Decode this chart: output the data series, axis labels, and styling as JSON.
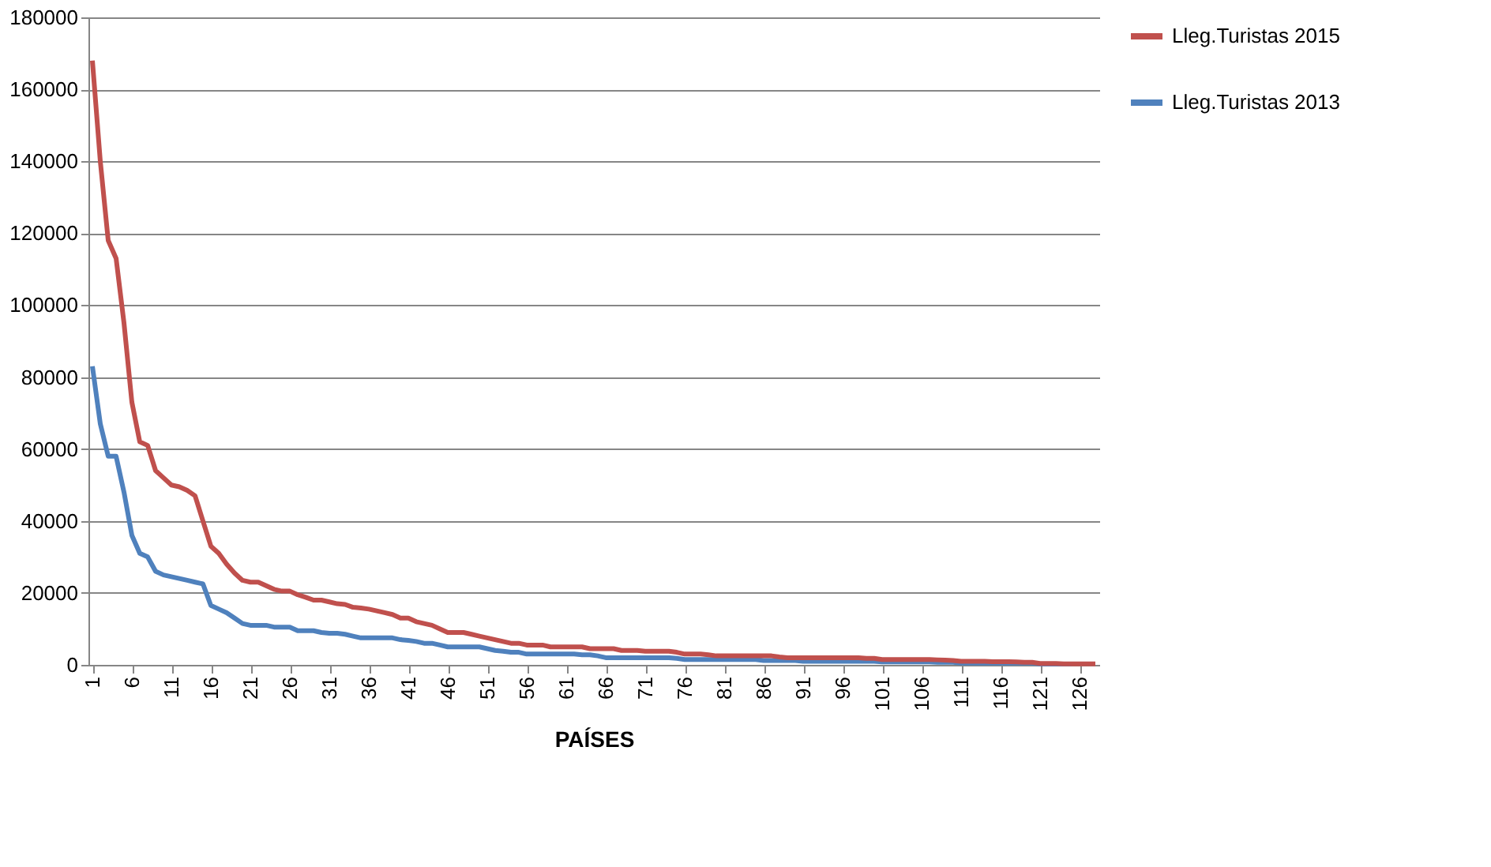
{
  "chart_data": {
    "type": "line",
    "xlabel": "PAÍSES",
    "x": [
      1,
      2,
      3,
      4,
      5,
      6,
      7,
      8,
      9,
      10,
      11,
      12,
      13,
      14,
      15,
      16,
      17,
      18,
      19,
      20,
      21,
      22,
      23,
      24,
      25,
      26,
      27,
      28,
      29,
      30,
      31,
      32,
      33,
      34,
      35,
      36,
      37,
      38,
      39,
      40,
      41,
      42,
      43,
      44,
      45,
      46,
      47,
      48,
      49,
      50,
      51,
      52,
      53,
      54,
      55,
      56,
      57,
      58,
      59,
      60,
      61,
      62,
      63,
      64,
      65,
      66,
      67,
      68,
      69,
      70,
      71,
      72,
      73,
      74,
      75,
      76,
      77,
      78,
      79,
      80,
      81,
      82,
      83,
      84,
      85,
      86,
      87,
      88,
      89,
      90,
      91,
      92,
      93,
      94,
      95,
      96,
      97,
      98,
      99,
      100,
      101,
      102,
      103,
      104,
      105,
      106,
      107,
      108,
      109,
      110,
      111,
      112,
      113,
      114,
      115,
      116,
      117,
      118,
      119,
      120,
      121,
      122,
      123,
      124,
      125,
      126,
      127,
      128
    ],
    "series": [
      {
        "name": "Lleg.Turistas 2015",
        "color": "#c0504d",
        "values": [
          168000,
          140000,
          118000,
          113000,
          95000,
          73000,
          62000,
          61000,
          54000,
          52000,
          50000,
          49500,
          48500,
          47000,
          40000,
          33000,
          31000,
          28000,
          25500,
          23500,
          23000,
          23000,
          22000,
          21000,
          20500,
          20500,
          19500,
          18800,
          18000,
          18000,
          17500,
          17000,
          16800,
          16000,
          15800,
          15500,
          15000,
          14500,
          14000,
          13000,
          13000,
          12000,
          11500,
          11000,
          10000,
          9000,
          9000,
          9000,
          8500,
          8000,
          7500,
          7000,
          6500,
          6000,
          6000,
          5500,
          5500,
          5500,
          5000,
          5000,
          5000,
          5000,
          5000,
          4500,
          4500,
          4500,
          4500,
          4000,
          4000,
          4000,
          3800,
          3800,
          3800,
          3800,
          3500,
          3000,
          3000,
          3000,
          2800,
          2500,
          2500,
          2500,
          2500,
          2500,
          2500,
          2500,
          2500,
          2200,
          2000,
          2000,
          2000,
          2000,
          2000,
          2000,
          2000,
          2000,
          2000,
          2000,
          1800,
          1800,
          1500,
          1500,
          1500,
          1500,
          1500,
          1500,
          1500,
          1400,
          1300,
          1200,
          1000,
          1000,
          1000,
          1000,
          900,
          900,
          900,
          800,
          700,
          700,
          400,
          400,
          400,
          300,
          300,
          300,
          300,
          300
        ]
      },
      {
        "name": "Lleg.Turistas 2013",
        "color": "#4f81bd",
        "values": [
          83000,
          67000,
          58000,
          58000,
          48000,
          36000,
          31000,
          30000,
          26000,
          25000,
          24500,
          24000,
          23500,
          23000,
          22500,
          16500,
          15500,
          14500,
          13000,
          11500,
          11000,
          11000,
          11000,
          10500,
          10500,
          10500,
          9500,
          9500,
          9500,
          9000,
          8800,
          8800,
          8500,
          8000,
          7500,
          7500,
          7500,
          7500,
          7500,
          7000,
          6800,
          6500,
          6000,
          6000,
          5500,
          5000,
          5000,
          5000,
          5000,
          5000,
          4500,
          4000,
          3800,
          3500,
          3500,
          3000,
          3000,
          3000,
          3000,
          3000,
          3000,
          3000,
          2800,
          2800,
          2500,
          2000,
          2000,
          2000,
          2000,
          2000,
          2000,
          2000,
          2000,
          2000,
          1800,
          1500,
          1500,
          1500,
          1500,
          1500,
          1500,
          1500,
          1500,
          1500,
          1500,
          1200,
          1200,
          1200,
          1200,
          1200,
          1000,
          1000,
          1000,
          1000,
          1000,
          1000,
          1000,
          1000,
          1000,
          1000,
          800,
          800,
          800,
          800,
          800,
          800,
          800,
          700,
          700,
          700,
          500,
          500,
          500,
          500,
          500,
          500,
          500,
          500,
          500,
          500,
          200,
          200,
          200,
          200,
          200,
          null,
          null,
          null
        ]
      }
    ],
    "xlim": [
      0.5,
      128.5
    ],
    "xticks": [
      1,
      6,
      11,
      16,
      21,
      26,
      31,
      36,
      41,
      46,
      51,
      56,
      61,
      66,
      71,
      76,
      81,
      86,
      91,
      96,
      101,
      106,
      111,
      116,
      121,
      126
    ],
    "ylim": [
      0,
      180000
    ],
    "yticks": [
      0,
      20000,
      40000,
      60000,
      80000,
      100000,
      120000,
      140000,
      160000,
      180000
    ],
    "grid": "y",
    "legend": "right",
    "marker": "none",
    "line_style": "solid"
  }
}
